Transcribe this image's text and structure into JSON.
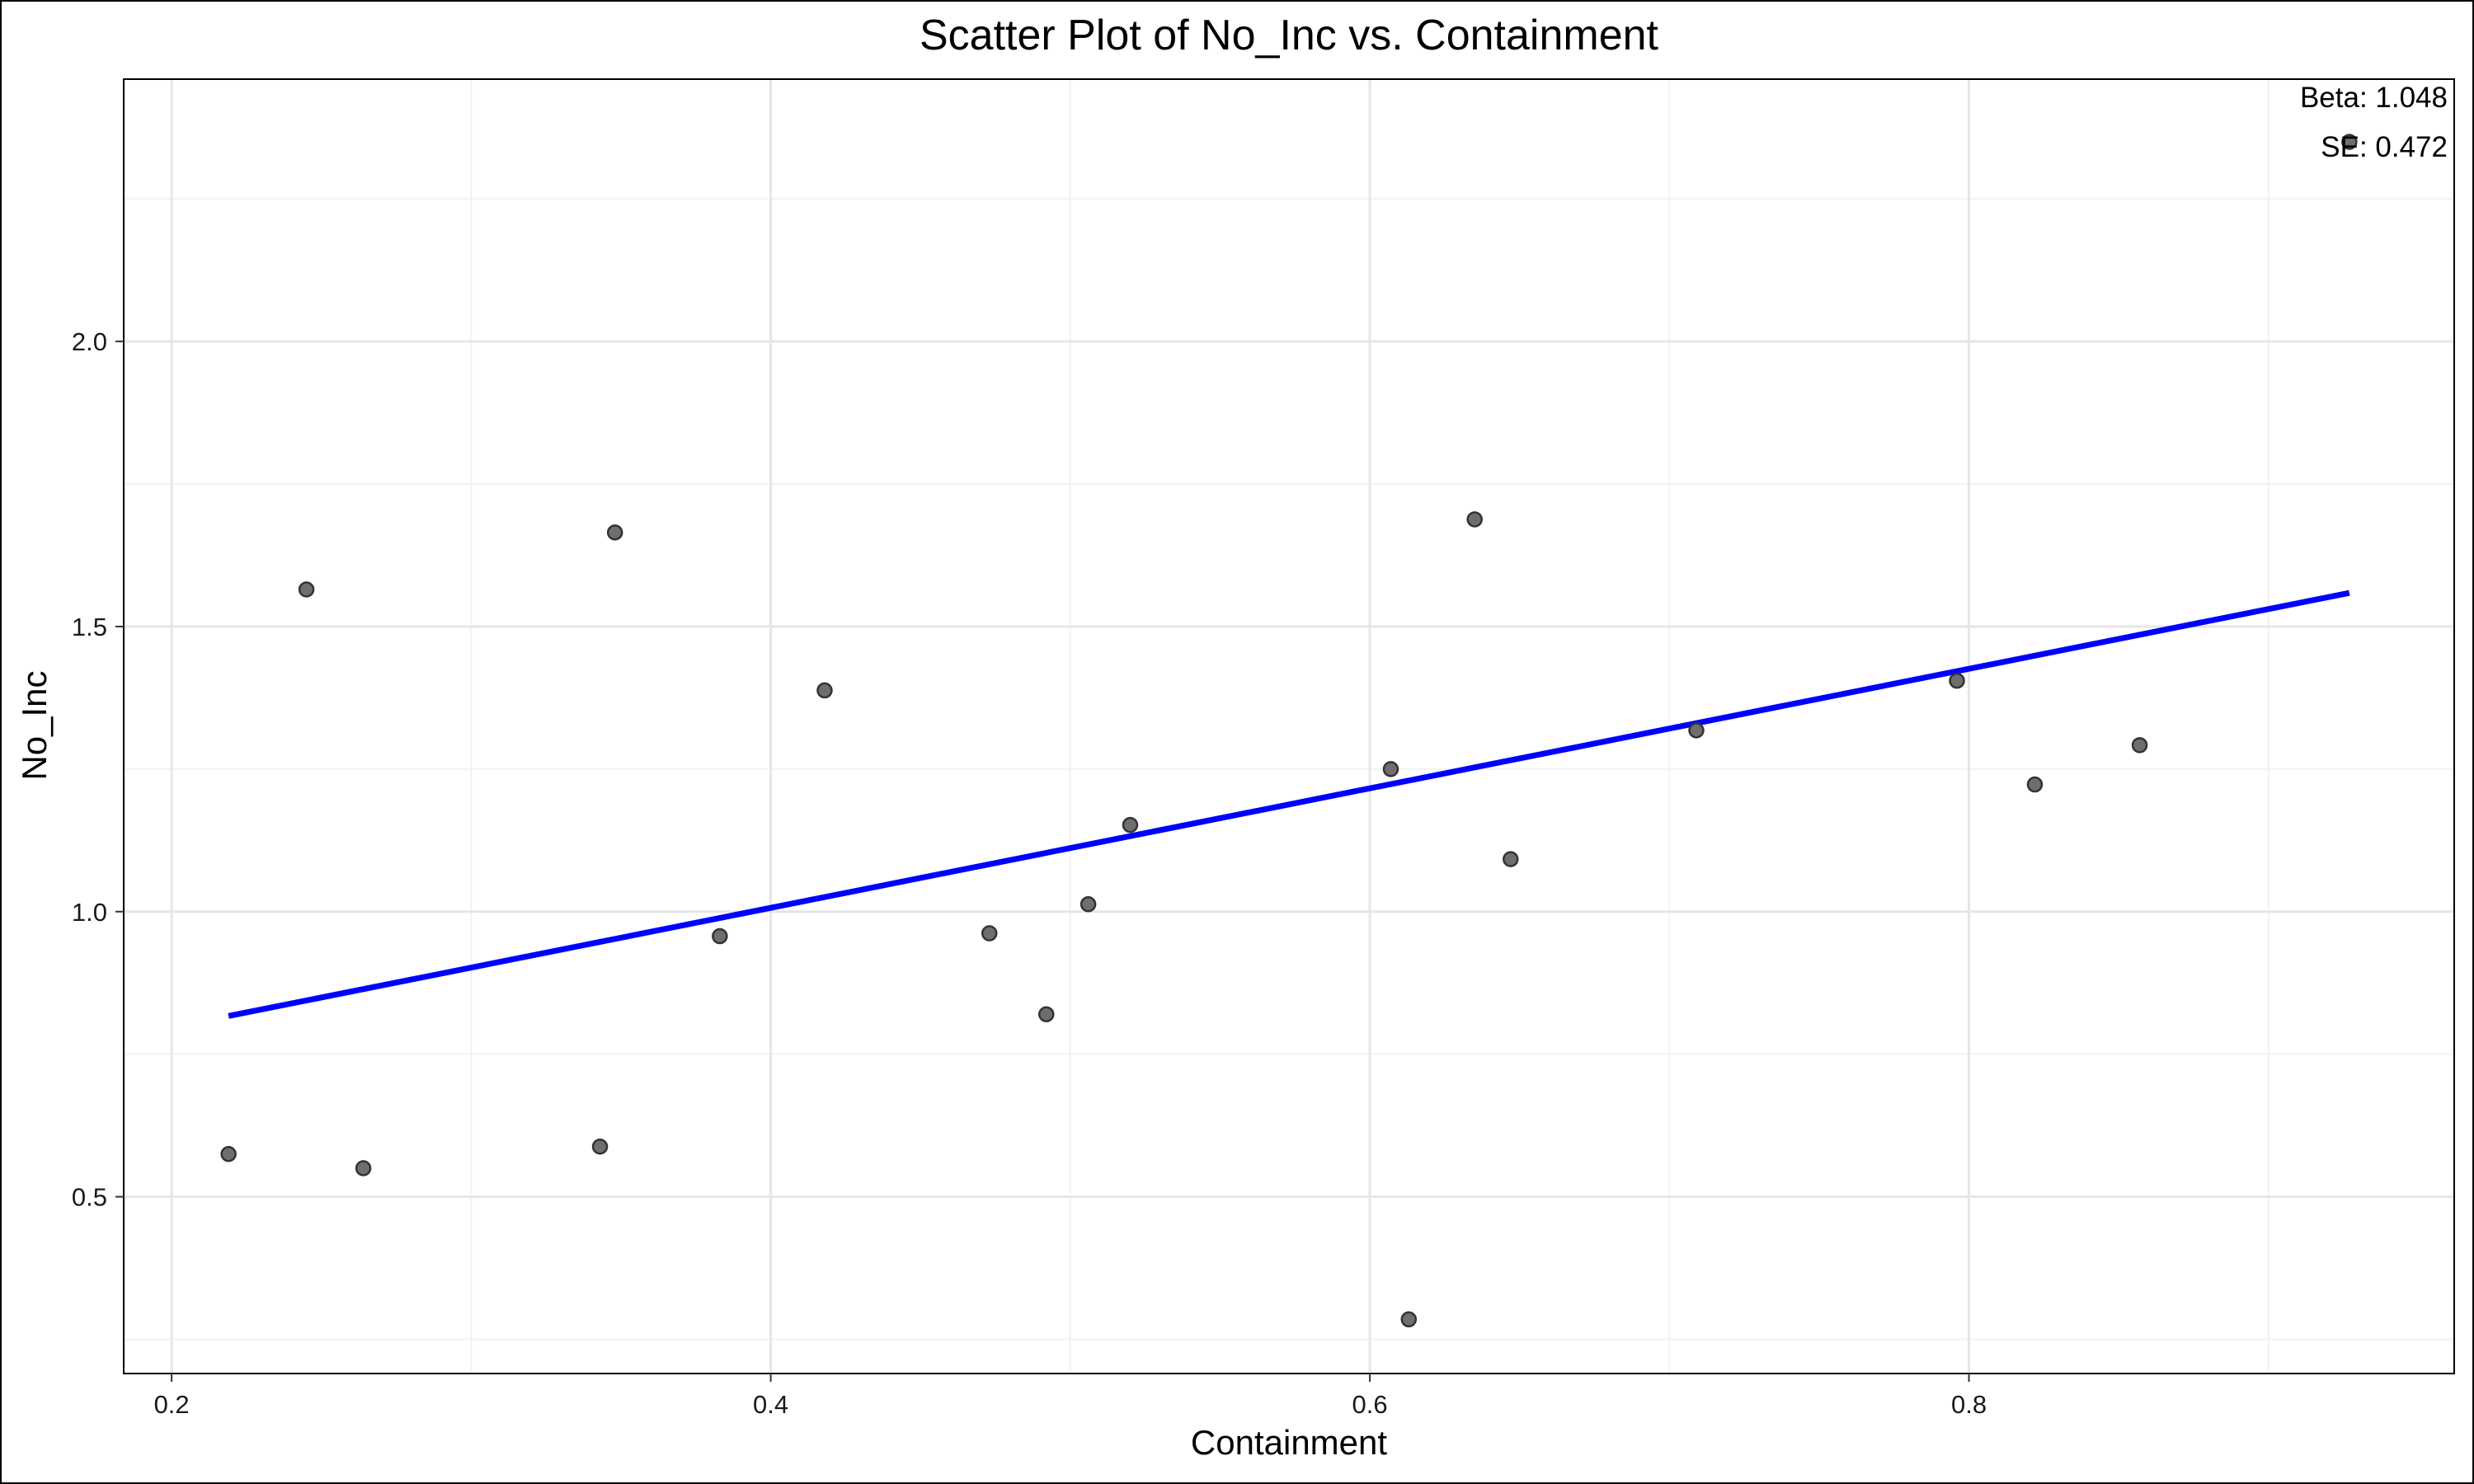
{
  "chart_data": {
    "type": "scatter",
    "title": "Scatter Plot of No_Inc vs. Containment",
    "xlabel": "Containment",
    "ylabel": "No_Inc",
    "xlim": [
      0.184,
      0.962
    ],
    "ylim": [
      0.19,
      2.46
    ],
    "x_ticks": [
      {
        "value": 0.2,
        "label": "0.2"
      },
      {
        "value": 0.4,
        "label": "0.4"
      },
      {
        "value": 0.6,
        "label": "0.6"
      },
      {
        "value": 0.8,
        "label": "0.8"
      }
    ],
    "y_ticks": [
      {
        "value": 0.5,
        "label": "0.5"
      },
      {
        "value": 1.0,
        "label": "1.0"
      },
      {
        "value": 1.5,
        "label": "1.5"
      },
      {
        "value": 2.0,
        "label": "2.0"
      }
    ],
    "grid": true,
    "points": [
      {
        "x": 0.219,
        "y": 0.575
      },
      {
        "x": 0.245,
        "y": 1.565
      },
      {
        "x": 0.264,
        "y": 0.55
      },
      {
        "x": 0.343,
        "y": 0.588
      },
      {
        "x": 0.348,
        "y": 1.665
      },
      {
        "x": 0.383,
        "y": 0.957
      },
      {
        "x": 0.418,
        "y": 1.388
      },
      {
        "x": 0.473,
        "y": 0.962
      },
      {
        "x": 0.492,
        "y": 0.82
      },
      {
        "x": 0.506,
        "y": 1.013
      },
      {
        "x": 0.52,
        "y": 1.152
      },
      {
        "x": 0.607,
        "y": 1.25
      },
      {
        "x": 0.613,
        "y": 0.285
      },
      {
        "x": 0.635,
        "y": 1.688
      },
      {
        "x": 0.647,
        "y": 1.092
      },
      {
        "x": 0.709,
        "y": 1.318
      },
      {
        "x": 0.796,
        "y": 1.405
      },
      {
        "x": 0.822,
        "y": 1.223
      },
      {
        "x": 0.857,
        "y": 1.292
      },
      {
        "x": 0.927,
        "y": 2.35
      }
    ],
    "fit_line": {
      "x": [
        0.219,
        0.927
      ],
      "y": [
        0.817,
        1.559
      ],
      "color": "#0000ff"
    },
    "point_color": "#6e6e6e",
    "annotations": [
      "Beta: 1.048",
      "SE: 0.472"
    ]
  }
}
